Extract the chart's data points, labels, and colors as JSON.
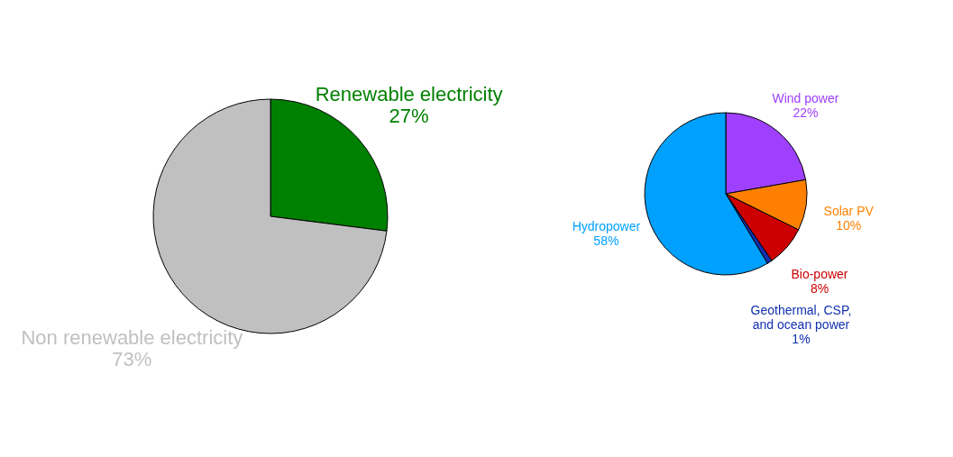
{
  "chart_data": [
    {
      "type": "pie",
      "categories": [
        "Renewable electricity",
        "Non renewable electricity"
      ],
      "values": [
        27,
        73
      ],
      "value_labels": [
        "27%",
        "73%"
      ],
      "colors": [
        "#008000",
        "#c0c0c0"
      ]
    },
    {
      "type": "pie",
      "categories": [
        "Wind power",
        "Solar PV",
        "Bio-power",
        "Geothermal, CSP,\nand ocean power",
        "Hydropower"
      ],
      "values": [
        22,
        10,
        8,
        1,
        58
      ],
      "value_labels": [
        "22%",
        "10%",
        "8%",
        "1%",
        "58%"
      ],
      "colors": [
        "#a040ff",
        "#ff8000",
        "#cc0000",
        "#1030b0",
        "#00a0ff"
      ]
    }
  ]
}
